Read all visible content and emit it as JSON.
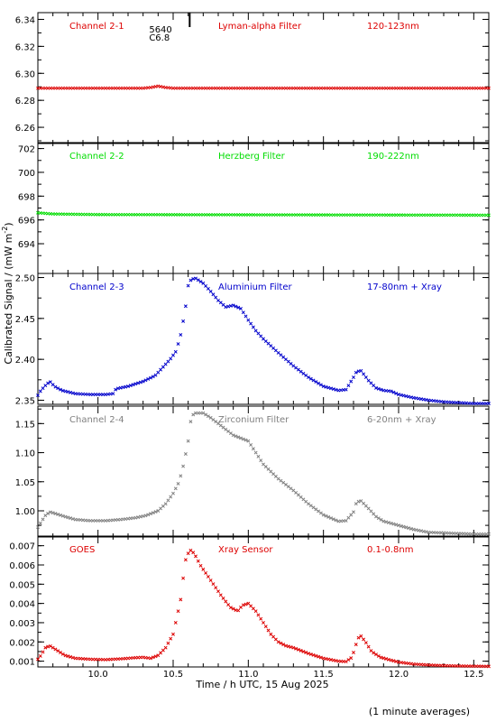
{
  "figure": {
    "xlabel": "Time / h UTC, 15 Aug 2025",
    "ylabel": "Calibrated Signal / (mW m",
    "ylabel_sup": "-2",
    "ylabel_close": ")",
    "footnote": "(1 minute averages)",
    "flare_marker": {
      "x": 10.61,
      "region": "5640",
      "class": "C6.8"
    }
  },
  "chart_data": [
    {
      "type": "scatter",
      "channel": "Channel 2-1",
      "filter": "Lyman-alpha Filter",
      "band": "120-123nm",
      "color": "#dd0000",
      "xlim": [
        9.6,
        12.6
      ],
      "ylim": [
        6.248,
        6.345
      ],
      "yticks": [
        6.26,
        6.28,
        6.3,
        6.32,
        6.34
      ],
      "ytick_labels": [
        "6.26",
        "6.28",
        "6.30",
        "6.32",
        "6.34"
      ],
      "grid": false,
      "x": [
        9.6,
        10.3,
        10.35,
        10.4,
        10.45,
        10.5,
        12.6
      ],
      "y": [
        6.289,
        6.289,
        6.2895,
        6.2905,
        6.2895,
        6.289,
        6.289
      ]
    },
    {
      "type": "scatter",
      "channel": "Channel 2-2",
      "filter": "Herzberg Filter",
      "band": "190-222nm",
      "color": "#00dd00",
      "xlim": [
        9.6,
        12.6
      ],
      "ylim": [
        691.5,
        702.5
      ],
      "yticks": [
        694,
        696,
        698,
        700,
        702
      ],
      "ytick_labels": [
        "694",
        "696",
        "698",
        "700",
        "702"
      ],
      "grid": false,
      "x": [
        9.6,
        9.7,
        10.0,
        12.6
      ],
      "y": [
        696.6,
        696.5,
        696.45,
        696.4
      ]
    },
    {
      "type": "scatter",
      "channel": "Channel 2-3",
      "filter": "Aluminium Filter",
      "band": "17-80nm + Xray",
      "color": "#0000cc",
      "xlim": [
        9.6,
        12.6
      ],
      "ylim": [
        2.345,
        2.505
      ],
      "yticks": [
        2.35,
        2.4,
        2.45,
        2.5
      ],
      "ytick_labels": [
        "2.35",
        "2.40",
        "2.45",
        "2.50"
      ],
      "grid": false,
      "x": [
        9.6,
        9.62,
        9.65,
        9.68,
        9.71,
        9.76,
        9.85,
        9.95,
        10.05,
        10.1,
        10.12,
        10.2,
        10.3,
        10.38,
        10.43,
        10.48,
        10.52,
        10.55,
        10.58,
        10.6,
        10.62,
        10.65,
        10.7,
        10.75,
        10.8,
        10.85,
        10.9,
        10.95,
        11.0,
        11.05,
        11.1,
        11.2,
        11.3,
        11.4,
        11.5,
        11.6,
        11.65,
        11.7,
        11.72,
        11.75,
        11.8,
        11.85,
        11.9,
        11.95,
        12.0,
        12.1,
        12.2,
        12.3,
        12.4,
        12.5,
        12.6
      ],
      "y": [
        2.356,
        2.362,
        2.368,
        2.373,
        2.367,
        2.362,
        2.358,
        2.357,
        2.357,
        2.358,
        2.364,
        2.367,
        2.373,
        2.38,
        2.39,
        2.4,
        2.41,
        2.43,
        2.46,
        2.49,
        2.498,
        2.499,
        2.493,
        2.483,
        2.472,
        2.464,
        2.466,
        2.462,
        2.448,
        2.435,
        2.425,
        2.408,
        2.392,
        2.378,
        2.367,
        2.362,
        2.363,
        2.378,
        2.385,
        2.386,
        2.374,
        2.365,
        2.362,
        2.361,
        2.357,
        2.353,
        2.35,
        2.348,
        2.347,
        2.346,
        2.346
      ]
    },
    {
      "type": "scatter",
      "channel": "Channel 2-4",
      "filter": "Zirconium Filter",
      "band": "6-20nm + Xray",
      "color": "#808080",
      "xlim": [
        9.6,
        12.6
      ],
      "ylim": [
        0.955,
        1.18
      ],
      "yticks": [
        1.0,
        1.05,
        1.1,
        1.15
      ],
      "ytick_labels": [
        "1.00",
        "1.05",
        "1.10",
        "1.15"
      ],
      "grid": false,
      "x": [
        9.6,
        9.62,
        9.65,
        9.68,
        9.72,
        9.78,
        9.85,
        9.95,
        10.05,
        10.15,
        10.25,
        10.32,
        10.4,
        10.45,
        10.5,
        10.54,
        10.57,
        10.6,
        10.62,
        10.64,
        10.7,
        10.75,
        10.8,
        10.85,
        10.9,
        10.95,
        11.0,
        11.05,
        11.1,
        11.2,
        11.3,
        11.4,
        11.5,
        11.6,
        11.65,
        11.7,
        11.72,
        11.75,
        11.8,
        11.85,
        11.9,
        12.0,
        12.1,
        12.2,
        12.3,
        12.4,
        12.5,
        12.6
      ],
      "y": [
        0.972,
        0.98,
        0.992,
        0.998,
        0.995,
        0.99,
        0.985,
        0.983,
        0.983,
        0.985,
        0.988,
        0.992,
        1.0,
        1.012,
        1.03,
        1.05,
        1.08,
        1.12,
        1.16,
        1.168,
        1.168,
        1.16,
        1.15,
        1.14,
        1.13,
        1.125,
        1.12,
        1.1,
        1.08,
        1.055,
        1.035,
        1.012,
        0.993,
        0.982,
        0.983,
        0.998,
        1.015,
        1.017,
        1.004,
        0.99,
        0.982,
        0.975,
        0.968,
        0.963,
        0.962,
        0.961,
        0.96,
        0.96
      ]
    },
    {
      "type": "scatter",
      "channel": "GOES",
      "filter": "Xray Sensor",
      "band": "0.1-0.8nm",
      "color": "#dd0000",
      "xlim": [
        9.6,
        12.6
      ],
      "ylim": [
        0.0007,
        0.0075
      ],
      "yticks": [
        0.001,
        0.002,
        0.003,
        0.004,
        0.005,
        0.006,
        0.007
      ],
      "ytick_labels": [
        "0.001",
        "0.002",
        "0.003",
        "0.004",
        "0.005",
        "0.006",
        "0.007"
      ],
      "grid": false,
      "x": [
        9.6,
        9.62,
        9.65,
        9.68,
        9.72,
        9.78,
        9.85,
        9.95,
        10.05,
        10.15,
        10.25,
        10.3,
        10.35,
        10.4,
        10.45,
        10.5,
        10.55,
        10.58,
        10.61,
        10.64,
        10.68,
        10.75,
        10.82,
        10.88,
        10.93,
        10.96,
        11.0,
        11.05,
        11.1,
        11.15,
        11.2,
        11.25,
        11.3,
        11.4,
        11.5,
        11.6,
        11.65,
        11.69,
        11.73,
        11.75,
        11.78,
        11.82,
        11.88,
        11.95,
        12.0,
        12.1,
        12.2,
        12.3,
        12.4,
        12.5,
        12.6
      ],
      "y": [
        0.0011,
        0.0013,
        0.0017,
        0.0018,
        0.0016,
        0.0013,
        0.00115,
        0.0011,
        0.00108,
        0.00112,
        0.00118,
        0.0012,
        0.00115,
        0.0013,
        0.0017,
        0.0024,
        0.0042,
        0.0062,
        0.0068,
        0.0066,
        0.006,
        0.0052,
        0.0044,
        0.0038,
        0.0036,
        0.0039,
        0.004,
        0.0036,
        0.003,
        0.0024,
        0.002,
        0.0018,
        0.0017,
        0.0014,
        0.00115,
        0.001,
        0.00098,
        0.0012,
        0.0022,
        0.0023,
        0.002,
        0.0015,
        0.0012,
        0.00105,
        0.00095,
        0.00085,
        0.0008,
        0.00077,
        0.00075,
        0.00074,
        0.00073
      ]
    }
  ],
  "xaxis": {
    "ticks": [
      10.0,
      10.5,
      11.0,
      11.5,
      12.0,
      12.5
    ],
    "tick_labels": [
      "10.0",
      "10.5",
      "11.0",
      "11.5",
      "12.0",
      "12.5"
    ],
    "minor_step": 0.1
  }
}
